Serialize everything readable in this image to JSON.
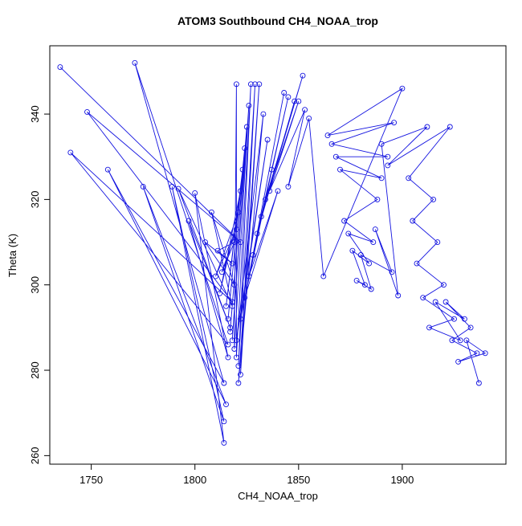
{
  "chart_data": {
    "type": "line",
    "title": "ATOM3 Southbound CH4_NOAA_trop",
    "xlabel": "CH4_NOAA_trop",
    "ylabel": "Theta (K)",
    "xlim": [
      1730,
      1950
    ],
    "ylim": [
      258,
      356
    ],
    "xticks": [
      1750,
      1800,
      1850,
      1900
    ],
    "yticks": [
      260,
      280,
      300,
      320,
      340
    ],
    "grid": false,
    "legend": "none",
    "marker": "open-circle",
    "series_color": "#1414e0",
    "x": [
      1735,
      1822,
      1748,
      1818,
      1740,
      1816,
      1771,
      1814,
      1758,
      1815,
      1775,
      1814,
      1789,
      1814,
      1800,
      1816,
      1797,
      1817,
      1792,
      1818,
      1808,
      1819,
      1805,
      1818,
      1811,
      1819,
      1813,
      1820,
      1810,
      1821,
      1812,
      1822,
      1815,
      1823,
      1816,
      1824,
      1817,
      1825,
      1818,
      1826,
      1819,
      1820,
      1820,
      1827,
      1821,
      1829,
      1822,
      1831,
      1821,
      1833,
      1820,
      1835,
      1822,
      1837,
      1824,
      1840,
      1826,
      1843,
      1828,
      1845,
      1830,
      1848,
      1832,
      1852,
      1834,
      1850,
      1836,
      1853,
      1845,
      1855,
      1862,
      1900,
      1864,
      1896,
      1866,
      1893,
      1868,
      1890,
      1870,
      1888,
      1872,
      1886,
      1874,
      1884,
      1876,
      1882,
      1878,
      1885,
      1880,
      1895,
      1887,
      1898,
      1890,
      1912,
      1893,
      1923,
      1903,
      1915,
      1905,
      1917,
      1907,
      1920,
      1910,
      1925,
      1913,
      1928,
      1916,
      1930,
      1921,
      1933,
      1924,
      1936,
      1927,
      1940,
      1931,
      1937
    ],
    "y": [
      351,
      310,
      340.5,
      296,
      331,
      286,
      352,
      277,
      327,
      272,
      323,
      268,
      323,
      263,
      321.5,
      283,
      315,
      290,
      322.5,
      295,
      317,
      300,
      310,
      305,
      308,
      310,
      303,
      313,
      302,
      317,
      298,
      322,
      295,
      327,
      292,
      332,
      289,
      337,
      287,
      342,
      285,
      347,
      283,
      347,
      281,
      347,
      279,
      347,
      277,
      340,
      287,
      334,
      292,
      327,
      297,
      322,
      302,
      345,
      307,
      344,
      312,
      343,
      316,
      349,
      320,
      343,
      322,
      341,
      323,
      339,
      302,
      346,
      335,
      338,
      333,
      330,
      330,
      325,
      327,
      320,
      315,
      310,
      312,
      305,
      308,
      300,
      301,
      299,
      307,
      303,
      313,
      297.5,
      333,
      337,
      328,
      337,
      325,
      320,
      315,
      310,
      305,
      300,
      297,
      292,
      290,
      287,
      296,
      292,
      296,
      290,
      287,
      284,
      282,
      284,
      287,
      277
    ]
  }
}
